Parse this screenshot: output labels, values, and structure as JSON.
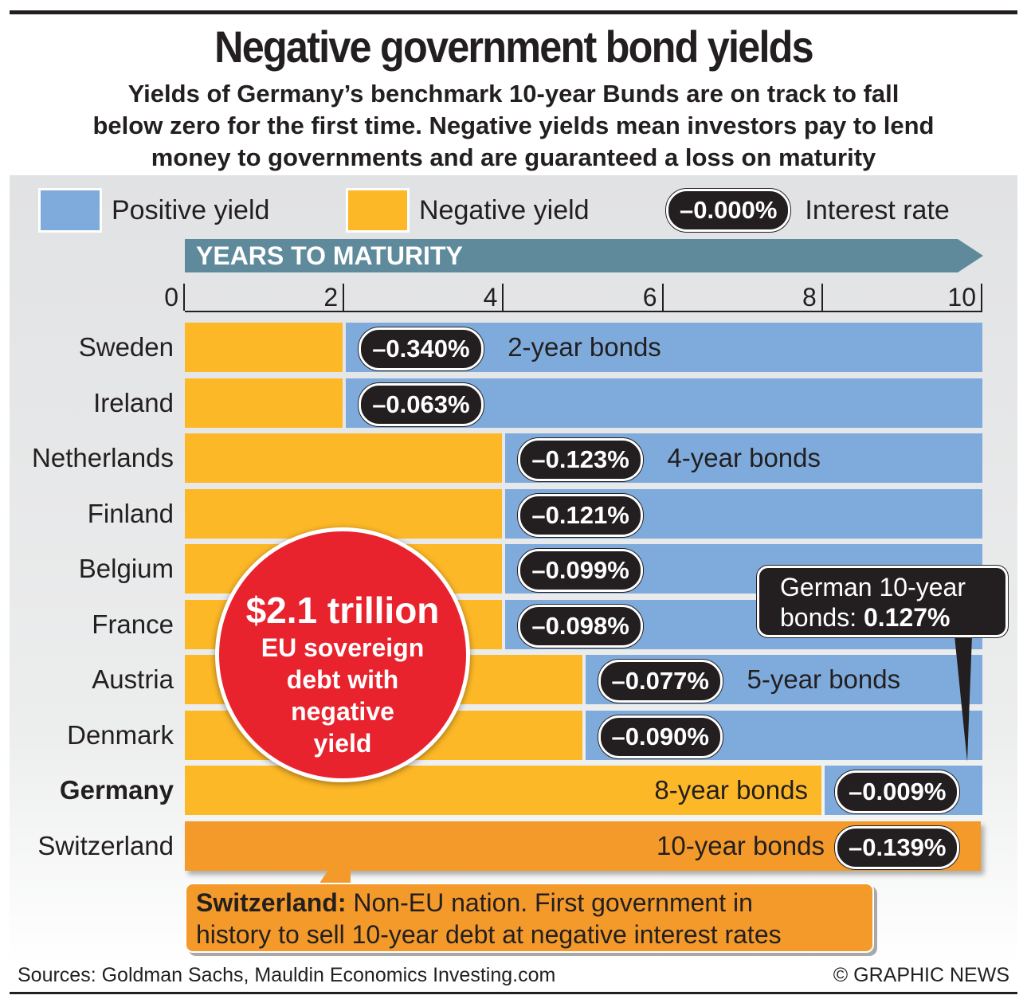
{
  "title": "Negative government bond yields",
  "subtitle": [
    "Yields of Germany’s benchmark 10-year Bunds are on track to fall",
    "below zero for the first time. Negative yields mean investors pay to lend",
    "money to governments and are guaranteed a loss on maturity"
  ],
  "legend": {
    "positive": "Positive yield",
    "negative": "Negative yield",
    "pill": "–0.000%",
    "pill_label": "Interest rate"
  },
  "colors": {
    "positive": "#7eabdc",
    "negative": "#fdb827",
    "switzerland": "#f39a2a",
    "circle": "#e8232e",
    "axis": "#5e8a9c"
  },
  "chart_data": {
    "type": "bar",
    "xlabel": "YEARS TO MATURITY",
    "xlim": [
      0,
      10
    ],
    "ticks": [
      "0",
      "2",
      "4",
      "6",
      "8",
      "10"
    ],
    "rows": [
      {
        "country": "Sweden",
        "maturity_years": 2,
        "yield": "–0.340%",
        "yield_value": -0.34,
        "bond_label": "2-year bonds"
      },
      {
        "country": "Ireland",
        "maturity_years": 2,
        "yield": "–0.063%",
        "yield_value": -0.063,
        "bond_label": ""
      },
      {
        "country": "Netherlands",
        "maturity_years": 4,
        "yield": "–0.123%",
        "yield_value": -0.123,
        "bond_label": "4-year bonds"
      },
      {
        "country": "Finland",
        "maturity_years": 4,
        "yield": "–0.121%",
        "yield_value": -0.121,
        "bond_label": ""
      },
      {
        "country": "Belgium",
        "maturity_years": 4,
        "yield": "–0.099%",
        "yield_value": -0.099,
        "bond_label": ""
      },
      {
        "country": "France",
        "maturity_years": 4,
        "yield": "–0.098%",
        "yield_value": -0.098,
        "bond_label": ""
      },
      {
        "country": "Austria",
        "maturity_years": 5,
        "yield": "–0.077%",
        "yield_value": -0.077,
        "bond_label": "5-year bonds"
      },
      {
        "country": "Denmark",
        "maturity_years": 5,
        "yield": "–0.090%",
        "yield_value": -0.09,
        "bond_label": ""
      },
      {
        "country": "Germany",
        "maturity_years": 8,
        "yield": "–0.009%",
        "yield_value": -0.009,
        "bond_label": "8-year bonds",
        "bold": true
      },
      {
        "country": "Switzerland",
        "maturity_years": 10,
        "yield": "–0.139%",
        "yield_value": -0.139,
        "bond_label": "10-year bonds",
        "highlight": true
      }
    ]
  },
  "circle": {
    "amount": "$2.1 trillion",
    "lines": [
      "EU sovereign",
      "debt with",
      "negative",
      "yield"
    ]
  },
  "german_callout": {
    "line1": "German 10-year",
    "line2_prefix": "bonds: ",
    "line2_value": "0.127%"
  },
  "swiss_callout": {
    "bold": "Switzerland:",
    "text1": " Non-EU nation. First government in",
    "text2": "history to sell 10-year debt at negative interest rates"
  },
  "footer": {
    "sources": "Sources: Goldman Sachs, Mauldin Economics Investing.com",
    "credit": "© GRAPHIC NEWS"
  }
}
